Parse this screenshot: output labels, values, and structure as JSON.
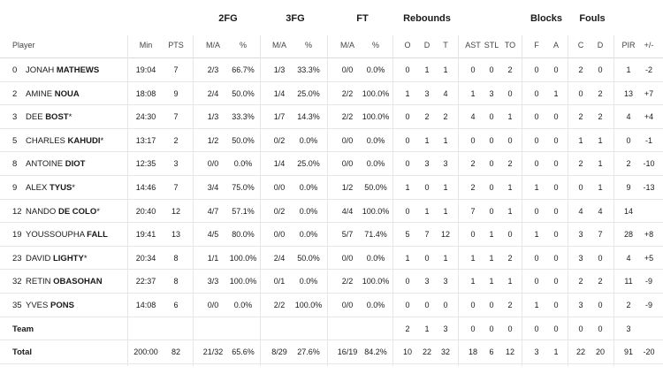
{
  "groups": {
    "fg2": "2FG",
    "fg3": "3FG",
    "ft": "FT",
    "rebounds": "Rebounds",
    "blocks": "Blocks",
    "fouls": "Fouls"
  },
  "headers": {
    "player": "Player",
    "min": "Min",
    "pts": "PTS",
    "fg2_ma": "M/A",
    "fg2_pct": "%",
    "fg3_ma": "M/A",
    "fg3_pct": "%",
    "ft_ma": "M/A",
    "ft_pct": "%",
    "o": "O",
    "d": "D",
    "t": "T",
    "ast": "AST",
    "stl": "STL",
    "to": "TO",
    "blk_f": "F",
    "blk_a": "A",
    "foul_c": "C",
    "foul_d": "D",
    "pir": "PIR",
    "pm": "+/-"
  },
  "players": [
    {
      "num": "0",
      "first": "JONAH",
      "last": "MATHEWS",
      "starter": "",
      "min": "19:04",
      "pts": "7",
      "fg2": "2/3",
      "fg2p": "66.7%",
      "fg3": "1/3",
      "fg3p": "33.3%",
      "ft": "0/0",
      "ftp": "0.0%",
      "o": "0",
      "d": "1",
      "t": "1",
      "ast": "0",
      "stl": "0",
      "to": "2",
      "bf": "0",
      "ba": "0",
      "fc": "2",
      "fd": "0",
      "pir": "1",
      "pm": "-2"
    },
    {
      "num": "2",
      "first": "AMINE",
      "last": "NOUA",
      "starter": "",
      "min": "18:08",
      "pts": "9",
      "fg2": "2/4",
      "fg2p": "50.0%",
      "fg3": "1/4",
      "fg3p": "25.0%",
      "ft": "2/2",
      "ftp": "100.0%",
      "o": "1",
      "d": "3",
      "t": "4",
      "ast": "1",
      "stl": "3",
      "to": "0",
      "bf": "0",
      "ba": "1",
      "fc": "0",
      "fd": "2",
      "pir": "13",
      "pm": "+7"
    },
    {
      "num": "3",
      "first": "DEE",
      "last": "BOST",
      "starter": "*",
      "min": "24:30",
      "pts": "7",
      "fg2": "1/3",
      "fg2p": "33.3%",
      "fg3": "1/7",
      "fg3p": "14.3%",
      "ft": "2/2",
      "ftp": "100.0%",
      "o": "0",
      "d": "2",
      "t": "2",
      "ast": "4",
      "stl": "0",
      "to": "1",
      "bf": "0",
      "ba": "0",
      "fc": "2",
      "fd": "2",
      "pir": "4",
      "pm": "+4"
    },
    {
      "num": "5",
      "first": "CHARLES",
      "last": "KAHUDI",
      "starter": "*",
      "min": "13:17",
      "pts": "2",
      "fg2": "1/2",
      "fg2p": "50.0%",
      "fg3": "0/2",
      "fg3p": "0.0%",
      "ft": "0/0",
      "ftp": "0.0%",
      "o": "0",
      "d": "1",
      "t": "1",
      "ast": "0",
      "stl": "0",
      "to": "0",
      "bf": "0",
      "ba": "0",
      "fc": "1",
      "fd": "1",
      "pir": "0",
      "pm": "-1"
    },
    {
      "num": "8",
      "first": "ANTOINE",
      "last": "DIOT",
      "starter": "",
      "min": "12:35",
      "pts": "3",
      "fg2": "0/0",
      "fg2p": "0.0%",
      "fg3": "1/4",
      "fg3p": "25.0%",
      "ft": "0/0",
      "ftp": "0.0%",
      "o": "0",
      "d": "3",
      "t": "3",
      "ast": "2",
      "stl": "0",
      "to": "2",
      "bf": "0",
      "ba": "0",
      "fc": "2",
      "fd": "1",
      "pir": "2",
      "pm": "-10"
    },
    {
      "num": "9",
      "first": "ALEX",
      "last": "TYUS",
      "starter": "*",
      "min": "14:46",
      "pts": "7",
      "fg2": "3/4",
      "fg2p": "75.0%",
      "fg3": "0/0",
      "fg3p": "0.0%",
      "ft": "1/2",
      "ftp": "50.0%",
      "o": "1",
      "d": "0",
      "t": "1",
      "ast": "2",
      "stl": "0",
      "to": "1",
      "bf": "1",
      "ba": "0",
      "fc": "0",
      "fd": "1",
      "pir": "9",
      "pm": "-13"
    },
    {
      "num": "12",
      "first": "NANDO",
      "last": "DE COLO",
      "starter": "*",
      "min": "20:40",
      "pts": "12",
      "fg2": "4/7",
      "fg2p": "57.1%",
      "fg3": "0/2",
      "fg3p": "0.0%",
      "ft": "4/4",
      "ftp": "100.0%",
      "o": "0",
      "d": "1",
      "t": "1",
      "ast": "7",
      "stl": "0",
      "to": "1",
      "bf": "0",
      "ba": "0",
      "fc": "4",
      "fd": "4",
      "pir": "14",
      "pm": ""
    },
    {
      "num": "19",
      "first": "YOUSSOUPHA",
      "last": "FALL",
      "starter": "",
      "min": "19:41",
      "pts": "13",
      "fg2": "4/5",
      "fg2p": "80.0%",
      "fg3": "0/0",
      "fg3p": "0.0%",
      "ft": "5/7",
      "ftp": "71.4%",
      "o": "5",
      "d": "7",
      "t": "12",
      "ast": "0",
      "stl": "1",
      "to": "0",
      "bf": "1",
      "ba": "0",
      "fc": "3",
      "fd": "7",
      "pir": "28",
      "pm": "+8"
    },
    {
      "num": "23",
      "first": "DAVID",
      "last": "LIGHTY",
      "starter": "*",
      "min": "20:34",
      "pts": "8",
      "fg2": "1/1",
      "fg2p": "100.0%",
      "fg3": "2/4",
      "fg3p": "50.0%",
      "ft": "0/0",
      "ftp": "0.0%",
      "o": "1",
      "d": "0",
      "t": "1",
      "ast": "1",
      "stl": "1",
      "to": "2",
      "bf": "0",
      "ba": "0",
      "fc": "3",
      "fd": "0",
      "pir": "4",
      "pm": "+5"
    },
    {
      "num": "32",
      "first": "RETIN",
      "last": "OBASOHAN",
      "starter": "",
      "min": "22:37",
      "pts": "8",
      "fg2": "3/3",
      "fg2p": "100.0%",
      "fg3": "0/1",
      "fg3p": "0.0%",
      "ft": "2/2",
      "ftp": "100.0%",
      "o": "0",
      "d": "3",
      "t": "3",
      "ast": "1",
      "stl": "1",
      "to": "1",
      "bf": "0",
      "ba": "0",
      "fc": "2",
      "fd": "2",
      "pir": "11",
      "pm": "-9"
    },
    {
      "num": "35",
      "first": "YVES",
      "last": "PONS",
      "starter": "",
      "min": "14:08",
      "pts": "6",
      "fg2": "0/0",
      "fg2p": "0.0%",
      "fg3": "2/2",
      "fg3p": "100.0%",
      "ft": "0/0",
      "ftp": "0.0%",
      "o": "0",
      "d": "0",
      "t": "0",
      "ast": "0",
      "stl": "0",
      "to": "2",
      "bf": "1",
      "ba": "0",
      "fc": "3",
      "fd": "0",
      "pir": "2",
      "pm": "-9"
    }
  ],
  "team": {
    "label": "Team",
    "o": "2",
    "d": "1",
    "t": "3",
    "ast": "0",
    "stl": "0",
    "to": "0",
    "bf": "0",
    "ba": "0",
    "fc": "0",
    "fd": "0",
    "pir": "3"
  },
  "total": {
    "label": "Total",
    "min": "200:00",
    "pts": "82",
    "fg2": "21/32",
    "fg2p": "65.6%",
    "fg3": "8/29",
    "fg3p": "27.6%",
    "ft": "16/19",
    "ftp": "84.2%",
    "o": "10",
    "d": "22",
    "t": "32",
    "ast": "18",
    "stl": "6",
    "to": "12",
    "bf": "3",
    "ba": "1",
    "fc": "22",
    "fd": "20",
    "pir": "91",
    "pm": "-20"
  }
}
